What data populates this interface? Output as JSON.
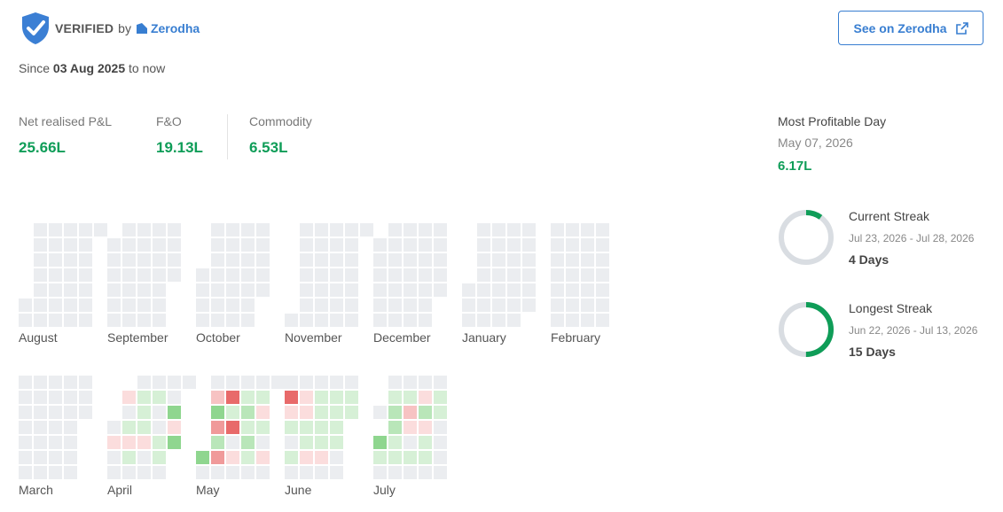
{
  "header": {
    "verified_label": "VERIFIED",
    "by_label": "by",
    "broker_name": "Zerodha",
    "see_button_label": "See on Zerodha"
  },
  "since": {
    "prefix": "Since",
    "date": "03 Aug 2025",
    "suffix": "to now"
  },
  "metrics": [
    {
      "label": "Net realised P&L",
      "value": "25.66L"
    },
    {
      "label": "F&O",
      "value": "19.13L"
    },
    {
      "label": "Commodity",
      "value": "6.53L"
    }
  ],
  "most_profitable_day": {
    "title": "Most Profitable Day",
    "date": "May 07, 2026",
    "value": "6.17L"
  },
  "streaks": [
    {
      "title": "Current Streak",
      "range": "Jul 23, 2026 - Jul 28, 2026",
      "days": "4 Days",
      "fraction": 0.1
    },
    {
      "title": "Longest Streak",
      "range": "Jun 22, 2026 - Jul 13, 2026",
      "days": "15 Days",
      "fraction": 0.5
    }
  ],
  "colors": {
    "accent": "#387ed1",
    "profit": "#0f9d58",
    "empty_cell": "#ebedf0",
    "green_1": "#d6f0d6",
    "green_2": "#b9e6b9",
    "green_3": "#8fd68f",
    "green_4": "#60c960",
    "red_1": "#fbdddd",
    "red_2": "#f7c3c3",
    "red_3": "#f09a9a",
    "red_4": "#e86a6a"
  },
  "heatmap": {
    "legend": "0 empty, 1-4 profit, -1..-4 loss",
    "months": [
      {
        "name": "August",
        "rows": [
          [
            null,
            0,
            0,
            0,
            0,
            0
          ],
          [
            null,
            0,
            0,
            0,
            0,
            null
          ],
          [
            null,
            0,
            0,
            0,
            0,
            null
          ],
          [
            null,
            0,
            0,
            0,
            0,
            null
          ],
          [
            null,
            0,
            0,
            0,
            0,
            null
          ],
          [
            0,
            0,
            0,
            0,
            0,
            null
          ],
          [
            0,
            0,
            0,
            0,
            0,
            null
          ]
        ]
      },
      {
        "name": "September",
        "rows": [
          [
            null,
            0,
            0,
            0,
            0
          ],
          [
            0,
            0,
            0,
            0,
            0
          ],
          [
            0,
            0,
            0,
            0,
            0
          ],
          [
            0,
            0,
            0,
            0,
            0
          ],
          [
            0,
            0,
            0,
            0,
            null
          ],
          [
            0,
            0,
            0,
            0,
            null
          ],
          [
            0,
            0,
            0,
            0,
            null
          ]
        ]
      },
      {
        "name": "October",
        "rows": [
          [
            null,
            0,
            0,
            0,
            0
          ],
          [
            null,
            0,
            0,
            0,
            0
          ],
          [
            null,
            0,
            0,
            0,
            0
          ],
          [
            0,
            0,
            0,
            0,
            0
          ],
          [
            0,
            0,
            0,
            0,
            0
          ],
          [
            0,
            0,
            0,
            0,
            null
          ],
          [
            0,
            0,
            0,
            0,
            null
          ]
        ]
      },
      {
        "name": "November",
        "rows": [
          [
            null,
            0,
            0,
            0,
            0,
            0
          ],
          [
            null,
            0,
            0,
            0,
            0,
            null
          ],
          [
            null,
            0,
            0,
            0,
            0,
            null
          ],
          [
            null,
            0,
            0,
            0,
            0,
            null
          ],
          [
            null,
            0,
            0,
            0,
            0,
            null
          ],
          [
            null,
            0,
            0,
            0,
            0,
            null
          ],
          [
            0,
            0,
            0,
            0,
            0,
            null
          ]
        ]
      },
      {
        "name": "December",
        "rows": [
          [
            null,
            0,
            0,
            0,
            0
          ],
          [
            0,
            0,
            0,
            0,
            0
          ],
          [
            0,
            0,
            0,
            0,
            0
          ],
          [
            0,
            0,
            0,
            0,
            0
          ],
          [
            0,
            0,
            0,
            0,
            0
          ],
          [
            0,
            0,
            0,
            0,
            null
          ],
          [
            0,
            0,
            0,
            0,
            null
          ]
        ]
      },
      {
        "name": "January",
        "rows": [
          [
            null,
            0,
            0,
            0,
            0
          ],
          [
            null,
            0,
            0,
            0,
            0
          ],
          [
            null,
            0,
            0,
            0,
            0
          ],
          [
            null,
            0,
            0,
            0,
            0
          ],
          [
            0,
            0,
            0,
            0,
            0
          ],
          [
            0,
            0,
            0,
            0,
            0
          ],
          [
            0,
            0,
            0,
            0,
            null
          ]
        ]
      },
      {
        "name": "February",
        "rows": [
          [
            0,
            0,
            0,
            0
          ],
          [
            0,
            0,
            0,
            0
          ],
          [
            0,
            0,
            0,
            0
          ],
          [
            0,
            0,
            0,
            0
          ],
          [
            0,
            0,
            0,
            0
          ],
          [
            0,
            0,
            0,
            0
          ],
          [
            0,
            0,
            0,
            0
          ]
        ]
      },
      {
        "name": "March",
        "rows": [
          [
            0,
            0,
            0,
            0,
            0
          ],
          [
            0,
            0,
            0,
            0,
            0
          ],
          [
            0,
            0,
            0,
            0,
            0
          ],
          [
            0,
            0,
            0,
            0,
            null
          ],
          [
            0,
            0,
            0,
            0,
            null
          ],
          [
            0,
            0,
            0,
            0,
            null
          ],
          [
            0,
            0,
            0,
            0,
            null
          ]
        ]
      },
      {
        "name": "April",
        "rows": [
          [
            null,
            null,
            0,
            0,
            0,
            0
          ],
          [
            null,
            -1,
            1,
            1,
            0,
            null
          ],
          [
            null,
            0,
            1,
            0,
            3,
            null
          ],
          [
            0,
            1,
            1,
            0,
            -1,
            null
          ],
          [
            -1,
            -1,
            -1,
            1,
            3,
            null
          ],
          [
            0,
            1,
            0,
            1,
            null,
            null
          ],
          [
            0,
            0,
            0,
            0,
            null,
            null
          ]
        ]
      },
      {
        "name": "May",
        "rows": [
          [
            null,
            0,
            0,
            0,
            0,
            0
          ],
          [
            null,
            -2,
            -4,
            1,
            1,
            null
          ],
          [
            null,
            3,
            1,
            2,
            -1,
            null
          ],
          [
            null,
            -3,
            -4,
            1,
            1,
            null
          ],
          [
            null,
            2,
            0,
            2,
            0,
            null
          ],
          [
            3,
            -3,
            -1,
            1,
            -1,
            null
          ],
          [
            0,
            0,
            0,
            0,
            0,
            null
          ]
        ]
      },
      {
        "name": "June",
        "rows": [
          [
            0,
            0,
            0,
            0,
            0
          ],
          [
            -4,
            -1,
            1,
            1,
            1
          ],
          [
            -1,
            -1,
            1,
            1,
            1
          ],
          [
            1,
            1,
            1,
            1,
            null
          ],
          [
            0,
            1,
            1,
            1,
            null
          ],
          [
            1,
            -1,
            -1,
            0,
            null
          ],
          [
            0,
            0,
            0,
            0,
            null
          ]
        ]
      },
      {
        "name": "July",
        "rows": [
          [
            null,
            0,
            0,
            0,
            0
          ],
          [
            null,
            1,
            1,
            -1,
            1
          ],
          [
            0,
            2,
            -2,
            2,
            1
          ],
          [
            null,
            2,
            -1,
            -1,
            0
          ],
          [
            3,
            1,
            0,
            1,
            0
          ],
          [
            1,
            1,
            1,
            1,
            0
          ],
          [
            0,
            0,
            0,
            0,
            0
          ]
        ]
      }
    ]
  }
}
